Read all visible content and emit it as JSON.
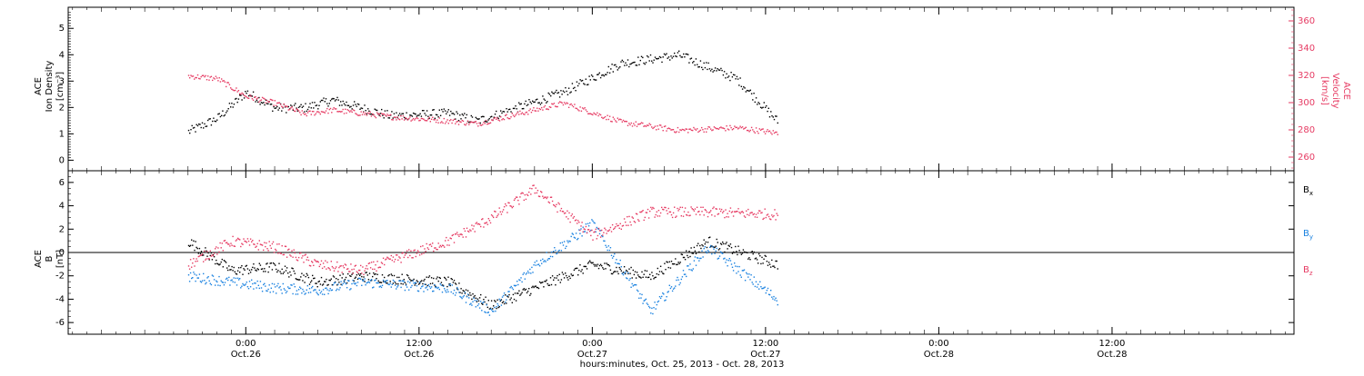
{
  "chart_data": [
    {
      "type": "scatter",
      "panel": "top",
      "ylabel_left": [
        "ACE",
        "Ion Density",
        "[cm⁻³]"
      ],
      "ylabel_right": [
        "ACE",
        "Velocity",
        "[km/s]"
      ],
      "ylim_left": [
        -0.4,
        5.8
      ],
      "ylim_right": [
        250,
        370
      ],
      "yticks_left": [
        0,
        1,
        2,
        3,
        4,
        5
      ],
      "yticks_right": [
        260,
        280,
        300,
        320,
        340,
        360
      ],
      "x_range_hours": [
        0,
        40.8
      ],
      "series": [
        {
          "color": "#000000",
          "axis": "left",
          "x": [
            0,
            2,
            4,
            6,
            8,
            10,
            14,
            18,
            20,
            26,
            30,
            34,
            38,
            40.8
          ],
          "y": [
            1.1,
            1.6,
            2.6,
            2.0,
            2.0,
            2.3,
            1.7,
            1.8,
            1.5,
            2.6,
            3.7,
            4.0,
            3.1,
            1.5
          ]
        },
        {
          "color": "#e63b63",
          "axis": "right",
          "x": [
            0,
            2,
            4,
            6,
            8,
            10,
            14,
            18,
            20,
            26,
            30,
            34,
            38,
            40.8
          ],
          "y": [
            320,
            318,
            305,
            300,
            292,
            295,
            290,
            287,
            285,
            300,
            286,
            280,
            282,
            278
          ]
        }
      ]
    },
    {
      "type": "scatter",
      "panel": "bottom",
      "ylabel": [
        "ACE",
        "B",
        "[nT]"
      ],
      "ylim": [
        -7,
        7
      ],
      "yticks": [
        -6,
        -4,
        -2,
        0,
        2,
        4,
        6
      ],
      "x_range_hours": [
        0,
        40.8
      ],
      "series": [
        {
          "name": "Bx",
          "color": "#000000",
          "x": [
            0,
            3,
            6,
            9,
            12,
            18,
            21,
            24,
            28,
            32,
            36,
            40.8
          ],
          "y": [
            1.0,
            -1.5,
            -1.2,
            -2.5,
            -2.0,
            -2.5,
            -4.5,
            -3.0,
            -1.0,
            -2.0,
            1.0,
            -1.0
          ]
        },
        {
          "name": "By",
          "color": "#1a82e0",
          "x": [
            0,
            3,
            6,
            9,
            12,
            18,
            21,
            24,
            28,
            32,
            36,
            40.8
          ],
          "y": [
            -2.0,
            -2.5,
            -3.0,
            -3.2,
            -2.5,
            -3.0,
            -5.0,
            -1.0,
            2.5,
            -5.0,
            0.5,
            -4.0
          ]
        },
        {
          "name": "Bz",
          "color": "#e63b63",
          "x": [
            0,
            3,
            6,
            9,
            12,
            18,
            21,
            24,
            28,
            32,
            36,
            40.8
          ],
          "y": [
            -1.0,
            1.0,
            0.5,
            -1.0,
            -1.5,
            1.0,
            3.0,
            5.5,
            1.5,
            3.5,
            3.5,
            3.3
          ]
        }
      ],
      "legend_labels": [
        {
          "main": "B",
          "sub": "x",
          "color": "#000000"
        },
        {
          "main": "B",
          "sub": "y",
          "color": "#1a82e0"
        },
        {
          "main": "B",
          "sub": "z",
          "color": "#e63b63"
        }
      ],
      "legend_placement": "right",
      "zero_line": true
    }
  ],
  "x_axis": {
    "ticks": [
      {
        "time": "0:00",
        "date": "Oct.26",
        "hours": 4
      },
      {
        "time": "12:00",
        "date": "Oct.26",
        "hours": 16
      },
      {
        "time": "0:00",
        "date": "Oct.27",
        "hours": 28
      },
      {
        "time": "12:00",
        "date": "Oct.27",
        "hours": 40
      },
      {
        "time": "0:00",
        "date": "Oct.28",
        "hours": 52
      },
      {
        "time": "12:00",
        "date": "Oct.28",
        "hours": 64
      }
    ],
    "hours_range": [
      -8.3,
      76.6
    ],
    "xlabel": "hours:minutes, Oct. 25, 2013 - Oct. 28, 2013"
  }
}
